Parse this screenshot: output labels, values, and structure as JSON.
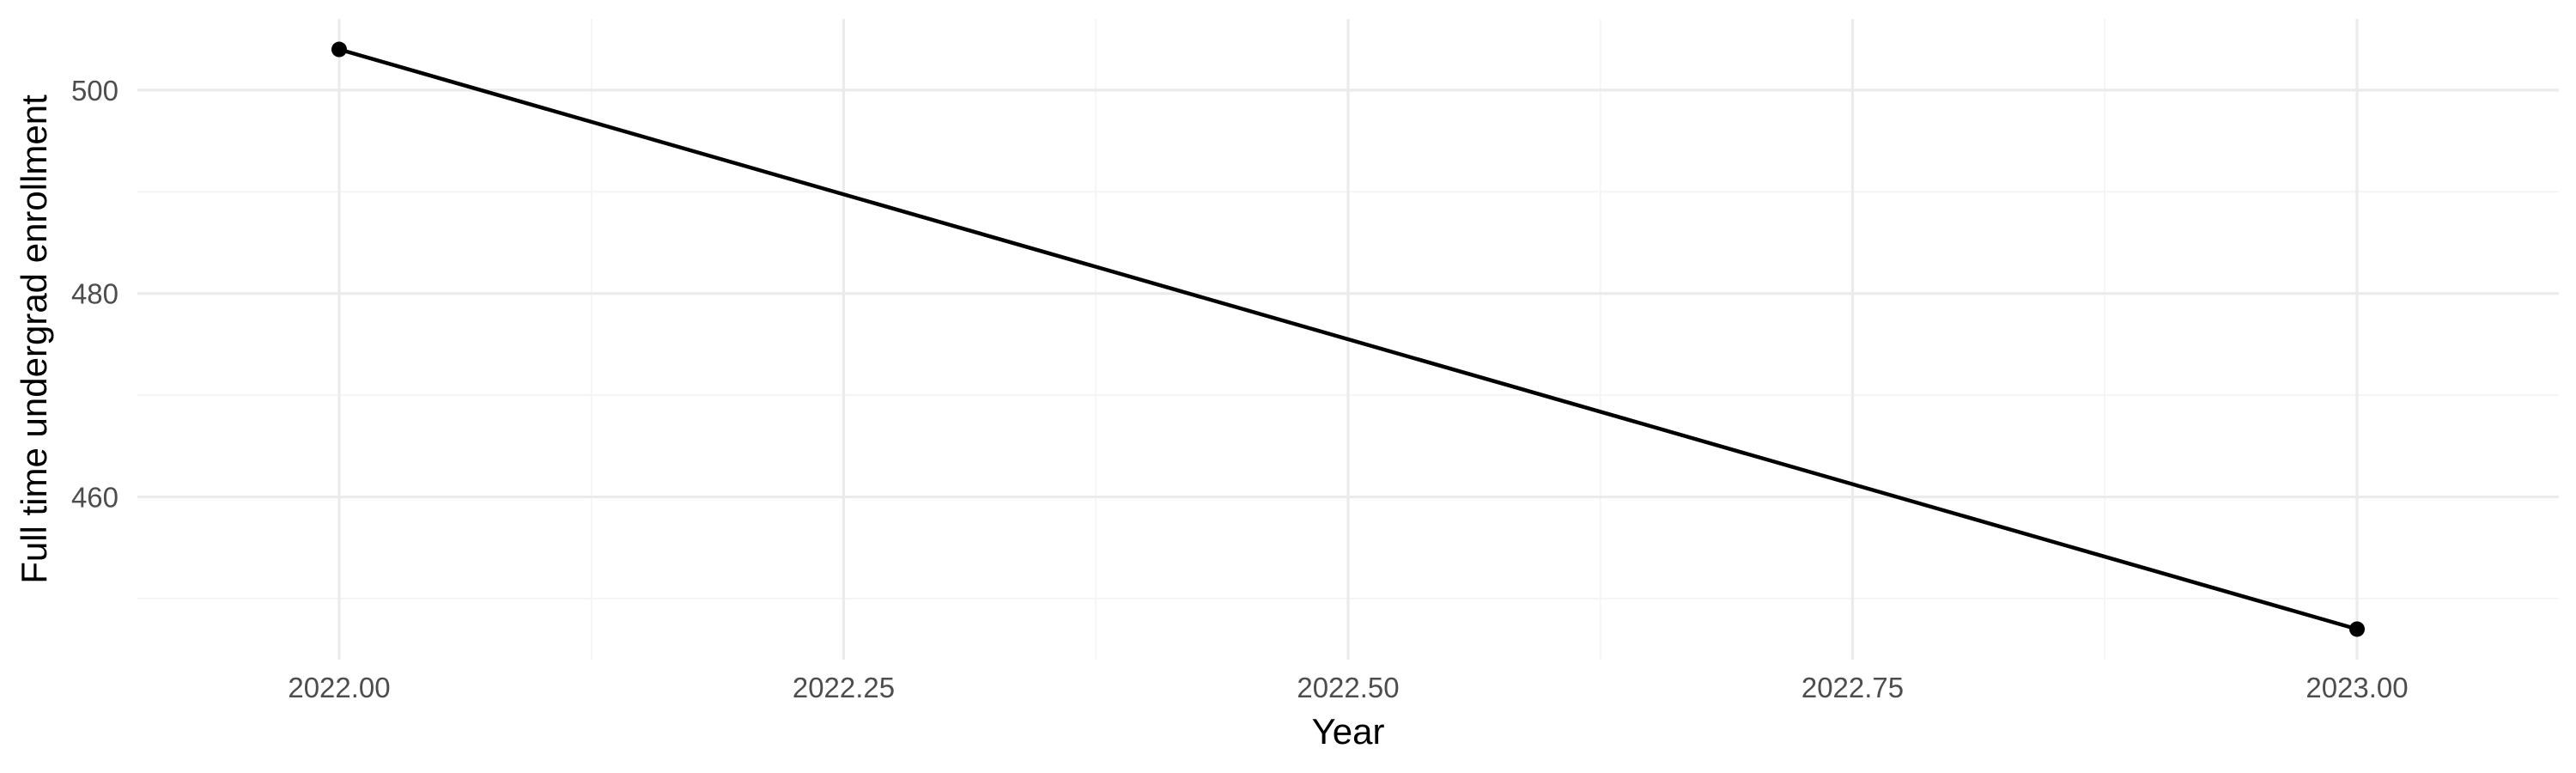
{
  "chart_data": {
    "type": "line",
    "title": "",
    "xlabel": "Year",
    "ylabel": "Full time undergrad enrollment",
    "xlim": [
      2021.9,
      2023.1
    ],
    "ylim": [
      444,
      507
    ],
    "x_ticks": [
      2022.0,
      2022.25,
      2022.5,
      2022.75,
      2023.0
    ],
    "x_tick_labels": [
      "2022.00",
      "2022.25",
      "2022.50",
      "2022.75",
      "2023.00"
    ],
    "y_ticks": [
      460,
      480,
      500
    ],
    "y_tick_labels": [
      "460",
      "480",
      "500"
    ],
    "grid": true,
    "legend": "none",
    "series": [
      {
        "x": [
          2022,
          2023
        ],
        "y": [
          504,
          447
        ],
        "color": "#000000"
      }
    ]
  }
}
